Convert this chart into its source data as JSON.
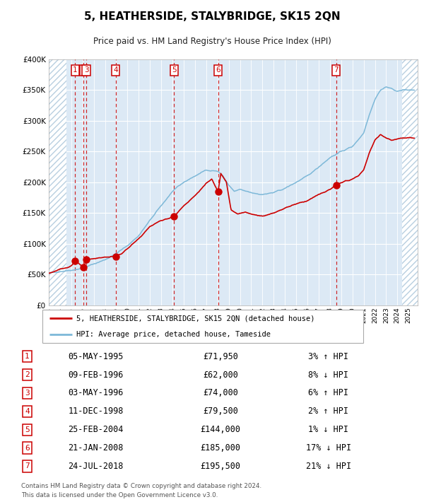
{
  "title": "5, HEATHERSIDE, STALYBRIDGE, SK15 2QN",
  "subtitle": "Price paid vs. HM Land Registry's House Price Index (HPI)",
  "transactions": [
    {
      "num": 1,
      "date": "05-MAY-1995",
      "price": 71950,
      "pct": "3%",
      "dir": "↑"
    },
    {
      "num": 2,
      "date": "09-FEB-1996",
      "price": 62000,
      "pct": "8%",
      "dir": "↓"
    },
    {
      "num": 3,
      "date": "03-MAY-1996",
      "price": 74000,
      "pct": "6%",
      "dir": "↑"
    },
    {
      "num": 4,
      "date": "11-DEC-1998",
      "price": 79500,
      "pct": "2%",
      "dir": "↑"
    },
    {
      "num": 5,
      "date": "25-FEB-2004",
      "price": 144000,
      "pct": "1%",
      "dir": "↓"
    },
    {
      "num": 6,
      "date": "21-JAN-2008",
      "price": 185000,
      "pct": "17%",
      "dir": "↓"
    },
    {
      "num": 7,
      "date": "24-JUL-2018",
      "price": 195500,
      "pct": "21%",
      "dir": "↓"
    }
  ],
  "tx_years": [
    1995.35,
    1996.11,
    1996.33,
    1998.94,
    2004.14,
    2008.05,
    2018.56
  ],
  "legend_line1": "5, HEATHERSIDE, STALYBRIDGE, SK15 2QN (detached house)",
  "legend_line2": "HPI: Average price, detached house, Tameside",
  "footer1": "Contains HM Land Registry data © Crown copyright and database right 2024.",
  "footer2": "This data is licensed under the Open Government Licence v3.0.",
  "bg_color": "#dce9f5",
  "hatch_color": "#b8cfe0",
  "hpi_color": "#7db8d8",
  "price_color": "#cc0000",
  "ylim": [
    0,
    400000
  ],
  "xlim_start": 1993.0,
  "xlim_end": 2025.8,
  "hatch_left_end": 1994.6,
  "hatch_right_start": 2024.4
}
